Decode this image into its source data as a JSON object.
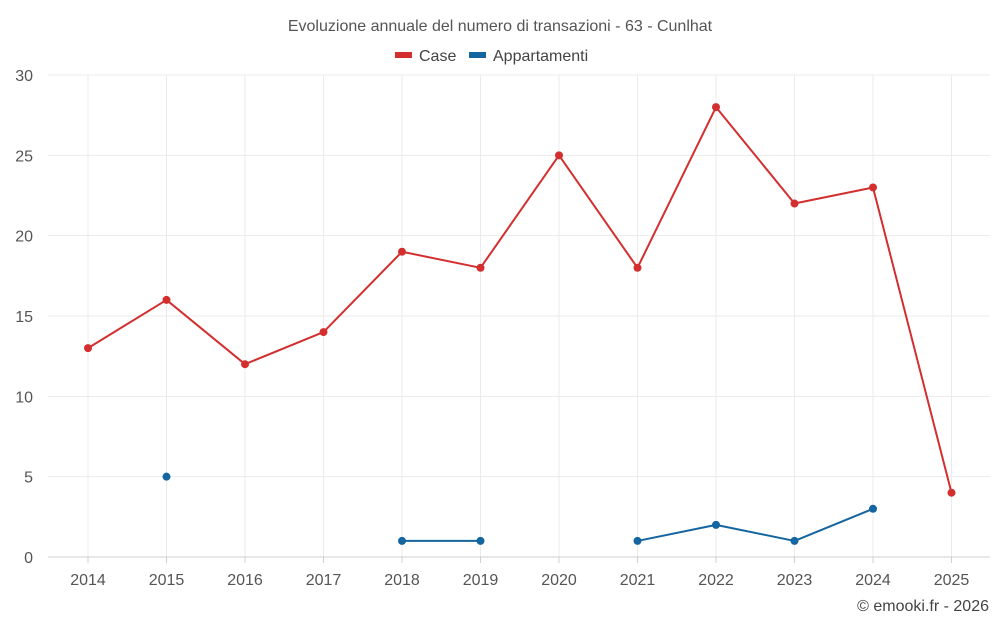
{
  "chart_data": {
    "type": "line",
    "title": "Evoluzione annuale del numero di transazioni - 63 - Cunlhat",
    "categories": [
      "2014",
      "2015",
      "2016",
      "2017",
      "2018",
      "2019",
      "2020",
      "2021",
      "2022",
      "2023",
      "2024",
      "2025"
    ],
    "ylim": [
      0,
      30
    ],
    "yticks": [
      0,
      5,
      10,
      15,
      20,
      25,
      30
    ],
    "grid": true,
    "legend_position": "top-center",
    "series": [
      {
        "name": "Case",
        "color": "#d32f2f",
        "values": [
          13,
          16,
          12,
          14,
          19,
          18,
          25,
          18,
          28,
          22,
          23,
          4
        ]
      },
      {
        "name": "Appartamenti",
        "color": "#1565a0",
        "values": [
          null,
          5,
          null,
          null,
          1,
          1,
          null,
          1,
          2,
          1,
          3,
          null
        ]
      }
    ]
  },
  "credit": "© emooki.fr - 2026"
}
